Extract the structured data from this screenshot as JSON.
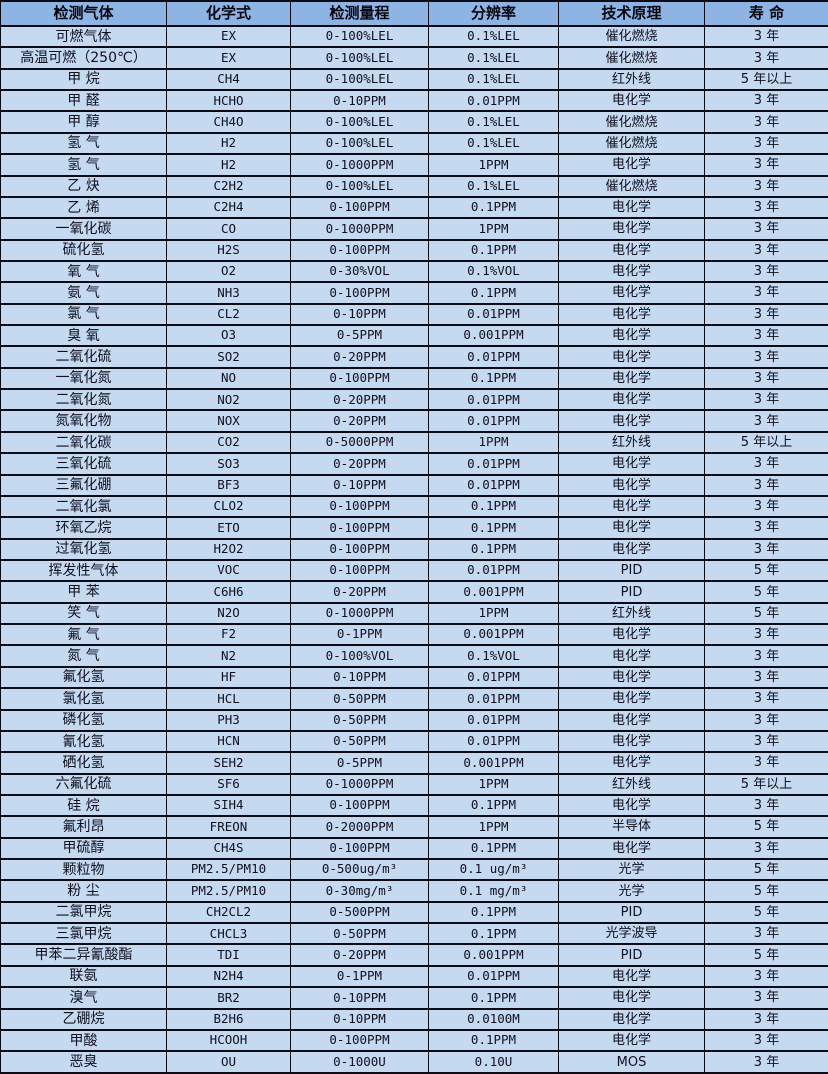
{
  "colors": {
    "header_bg": "#8db4e2",
    "row_bg": "#c5d9f1",
    "grid_border": "#0b0b16",
    "text": "#10101e"
  },
  "table": {
    "columns": [
      "检测气体",
      "化学式",
      "检测量程",
      "分辨率",
      "技术原理",
      "寿 命"
    ],
    "rows": [
      [
        "可燃气体",
        "EX",
        "0-100%LEL",
        "0.1%LEL",
        "催化燃烧",
        "3 年"
      ],
      [
        "高温可燃（250℃）",
        "EX",
        "0-100%LEL",
        "0.1%LEL",
        "催化燃烧",
        "3 年"
      ],
      [
        "甲 烷",
        "CH4",
        "0-100%LEL",
        "0.1%LEL",
        "红外线",
        "5 年以上"
      ],
      [
        "甲 醛",
        "HCHO",
        "0-10PPM",
        "0.01PPM",
        "电化学",
        "3 年"
      ],
      [
        "甲 醇",
        "CH4O",
        "0-100%LEL",
        "0.1%LEL",
        "催化燃烧",
        "3 年"
      ],
      [
        "氢 气",
        "H2",
        "0-100%LEL",
        "0.1%LEL",
        "催化燃烧",
        "3 年"
      ],
      [
        "氢 气",
        "H2",
        "0-1000PPM",
        "1PPM",
        "电化学",
        "3 年"
      ],
      [
        "乙 炔",
        "C2H2",
        "0-100%LEL",
        "0.1%LEL",
        "催化燃烧",
        "3 年"
      ],
      [
        "乙 烯",
        "C2H4",
        "0-100PPM",
        "0.1PPM",
        "电化学",
        "3 年"
      ],
      [
        "一氧化碳",
        "CO",
        "0-1000PPM",
        "1PPM",
        "电化学",
        "3 年"
      ],
      [
        "硫化氢",
        "H2S",
        "0-100PPM",
        "0.1PPM",
        "电化学",
        "3 年"
      ],
      [
        "氧 气",
        "O2",
        "0-30%VOL",
        "0.1%VOL",
        "电化学",
        "3 年"
      ],
      [
        "氨 气",
        "NH3",
        "0-100PPM",
        "0.1PPM",
        "电化学",
        "3 年"
      ],
      [
        "氯 气",
        "CL2",
        "0-10PPM",
        "0.01PPM",
        "电化学",
        "3 年"
      ],
      [
        "臭 氧",
        "O3",
        "0-5PPM",
        "0.001PPM",
        "电化学",
        "3 年"
      ],
      [
        "二氧化硫",
        "SO2",
        "0-20PPM",
        "0.01PPM",
        "电化学",
        "3 年"
      ],
      [
        "一氧化氮",
        "NO",
        "0-100PPM",
        "0.1PPM",
        "电化学",
        "3 年"
      ],
      [
        "二氧化氮",
        "NO2",
        "0-20PPM",
        "0.01PPM",
        "电化学",
        "3 年"
      ],
      [
        "氮氧化物",
        "NOX",
        "0-20PPM",
        "0.01PPM",
        "电化学",
        "3 年"
      ],
      [
        "二氧化碳",
        "CO2",
        "0-5000PPM",
        "1PPM",
        "红外线",
        "5 年以上"
      ],
      [
        "三氧化硫",
        "SO3",
        "0-20PPM",
        "0.01PPM",
        "电化学",
        "3 年"
      ],
      [
        "三氟化硼",
        "BF3",
        "0-10PPM",
        "0.01PPM",
        "电化学",
        "3 年"
      ],
      [
        "二氧化氯",
        "CLO2",
        "0-100PPM",
        "0.1PPM",
        "电化学",
        "3 年"
      ],
      [
        "环氧乙烷",
        "ETO",
        "0-100PPM",
        "0.1PPM",
        "电化学",
        "3 年"
      ],
      [
        "过氧化氢",
        "H2O2",
        "0-100PPM",
        "0.1PPM",
        "电化学",
        "3 年"
      ],
      [
        "挥发性气体",
        "VOC",
        "0-100PPM",
        "0.01PPM",
        "PID",
        "5 年"
      ],
      [
        "甲 苯",
        "C6H6",
        "0-20PPM",
        "0.001PPM",
        "PID",
        "5 年"
      ],
      [
        "笑 气",
        "N2O",
        "0-1000PPM",
        "1PPM",
        "红外线",
        "5 年"
      ],
      [
        "氟 气",
        "F2",
        "0-1PPM",
        "0.001PPM",
        "电化学",
        "3 年"
      ],
      [
        "氮 气",
        "N2",
        "0-100%VOL",
        "0.1%VOL",
        "电化学",
        "3 年"
      ],
      [
        "氟化氢",
        "HF",
        "0-10PPM",
        "0.01PPM",
        "电化学",
        "3 年"
      ],
      [
        "氯化氢",
        "HCL",
        "0-50PPM",
        "0.01PPM",
        "电化学",
        "3 年"
      ],
      [
        "磷化氢",
        "PH3",
        "0-50PPM",
        "0.01PPM",
        "电化学",
        "3 年"
      ],
      [
        "氰化氢",
        "HCN",
        "0-50PPM",
        "0.01PPM",
        "电化学",
        "3 年"
      ],
      [
        "硒化氢",
        "SEH2",
        "0-5PPM",
        "0.001PPM",
        "电化学",
        "3 年"
      ],
      [
        "六氟化硫",
        "SF6",
        "0-1000PPM",
        "1PPM",
        "红外线",
        "5 年以上"
      ],
      [
        "硅 烷",
        "SIH4",
        "0-100PPM",
        "0.1PPM",
        "电化学",
        "3 年"
      ],
      [
        "氟利昂",
        "FREON",
        "0-2000PPM",
        "1PPM",
        "半导体",
        "5 年"
      ],
      [
        "甲硫醇",
        "CH4S",
        "0-100PPM",
        "0.1PPM",
        "电化学",
        "3 年"
      ],
      [
        "颗粒物",
        "PM2.5/PM10",
        "0-500ug/m³",
        "0.1 ug/m³",
        "光学",
        "5 年"
      ],
      [
        "粉 尘",
        "PM2.5/PM10",
        "0-30mg/m³",
        "0.1 mg/m³",
        "光学",
        "5 年"
      ],
      [
        "二氯甲烷",
        "CH2CL2",
        "0-500PPM",
        "0.1PPM",
        "PID",
        "5 年"
      ],
      [
        "三氯甲烷",
        "CHCL3",
        "0-50PPM",
        "0.1PPM",
        "光学波导",
        "3 年"
      ],
      [
        "甲苯二异氰酸酯",
        "TDI",
        "0-20PPM",
        "0.001PPM",
        "PID",
        "5 年"
      ],
      [
        "联氨",
        "N2H4",
        "0-1PPM",
        "0.01PPM",
        "电化学",
        "3 年"
      ],
      [
        "溴气",
        "BR2",
        "0-10PPM",
        "0.1PPM",
        "电化学",
        "3 年"
      ],
      [
        "乙硼烷",
        "B2H6",
        "0-10PPM",
        "0.0100M",
        "电化学",
        "3 年"
      ],
      [
        "甲酸",
        "HCOOH",
        "0-100PPM",
        "0.1PPM",
        "电化学",
        "3 年"
      ],
      [
        "恶臭",
        "OU",
        "0-1000U",
        "0.10U",
        "MOS",
        "3 年"
      ]
    ]
  }
}
